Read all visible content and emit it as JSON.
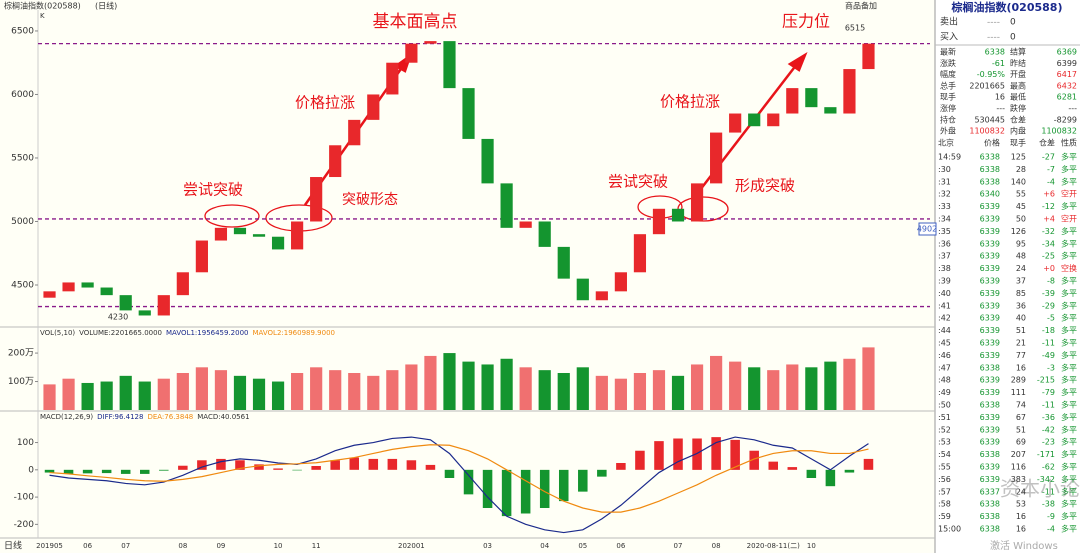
{
  "header": {
    "title": "棕榈油指数(020588)",
    "period": "(日线)",
    "corner": "K",
    "button": "商品备加"
  },
  "chart_data": [
    {
      "type": "candlestick",
      "ylim": [
        4185,
        6665
      ],
      "yticks": [
        4500,
        5000,
        5500,
        6000,
        6500
      ],
      "levels": [
        6400,
        5020,
        4330
      ],
      "open": [
        4400,
        4450,
        4520,
        4480,
        4420,
        4300,
        4260,
        4420,
        4600,
        4850,
        4950,
        4900,
        4880,
        4780,
        5000,
        5350,
        5600,
        5800,
        6000,
        6250,
        6400,
        6420,
        6050,
        5650,
        5300,
        4950,
        5000,
        4800,
        4550,
        4380,
        4450,
        4600,
        4900,
        5100,
        5000,
        5300,
        5700,
        5850,
        5750,
        5850,
        6050,
        5900,
        5850,
        6200
      ],
      "close": [
        4450,
        4520,
        4480,
        4420,
        4300,
        4260,
        4420,
        4600,
        4850,
        4950,
        4900,
        4880,
        4780,
        5000,
        5350,
        5600,
        5800,
        6000,
        6250,
        6400,
        6420,
        6050,
        5650,
        5300,
        4950,
        5000,
        4800,
        4550,
        4380,
        4450,
        4600,
        4900,
        5100,
        5000,
        5300,
        5700,
        5850,
        5750,
        5850,
        6050,
        5900,
        5850,
        6200,
        6400
      ],
      "up_color": "#e8282b",
      "down_color": "#14952f",
      "annotations": [
        "基本面高点",
        "价格拉涨",
        "尝试突破",
        "突破形态",
        "价格拉涨",
        "尝试突破",
        "形成突破",
        "压力位",
        "6515",
        "4230",
        "4902"
      ]
    },
    {
      "type": "bar",
      "legend": [
        "VOL(5,10)",
        "VOLUME:2201665.0000",
        "MAVOL1:1956459.2000",
        "MAVOL2:1960989.9000"
      ],
      "ylim": [
        0,
        2600000
      ],
      "yticks": [
        {
          "value": 1000000,
          "label": "100万"
        },
        {
          "value": 2000000,
          "label": "200万"
        }
      ],
      "values": [
        900000,
        1100000,
        950000,
        1000000,
        1200000,
        1000000,
        1100000,
        1300000,
        1500000,
        1400000,
        1200000,
        1100000,
        1000000,
        1300000,
        1500000,
        1400000,
        1300000,
        1200000,
        1400000,
        1600000,
        1900000,
        2000000,
        1700000,
        1600000,
        1800000,
        1500000,
        1400000,
        1300000,
        1500000,
        1200000,
        1100000,
        1300000,
        1400000,
        1200000,
        1600000,
        1900000,
        1700000,
        1500000,
        1400000,
        1600000,
        1500000,
        1700000,
        1800000,
        2200000
      ]
    },
    {
      "type": "macd",
      "legend": [
        "MACD(12,26,9)",
        "DIFF:96.4128",
        "DEA:76.3848",
        "MACD:40.0561"
      ],
      "ylim": [
        -250,
        190
      ],
      "yticks": [
        100,
        0,
        -100,
        -200
      ],
      "x_title": "日线",
      "categories": [
        "201905",
        null,
        "06",
        null,
        "07",
        null,
        null,
        "08",
        null,
        "09",
        null,
        null,
        "10",
        null,
        "11",
        null,
        null,
        null,
        null,
        "202001",
        null,
        null,
        null,
        "03",
        null,
        null,
        "04",
        null,
        "05",
        null,
        "06",
        null,
        null,
        "07",
        null,
        "08",
        null,
        null,
        "2020-08-11(二)",
        null,
        "10",
        null,
        null,
        null
      ],
      "series": [
        {
          "name": "DIFF",
          "color": "#1b2a8c",
          "values": [
            -20,
            -30,
            -35,
            -40,
            -50,
            -55,
            -45,
            -20,
            10,
            30,
            40,
            35,
            25,
            20,
            40,
            70,
            90,
            100,
            115,
            120,
            110,
            60,
            -20,
            -100,
            -170,
            -200,
            -220,
            -230,
            -220,
            -180,
            -130,
            -70,
            -10,
            30,
            60,
            100,
            120,
            110,
            90,
            80,
            40,
            0,
            50,
            96
          ]
        },
        {
          "name": "DEA",
          "color": "#f08a10",
          "values": [
            -10,
            -15,
            -22,
            -28,
            -35,
            -40,
            -42,
            -35,
            -25,
            -10,
            5,
            15,
            20,
            22,
            26,
            35,
            45,
            60,
            75,
            85,
            92,
            90,
            70,
            40,
            0,
            -40,
            -80,
            -115,
            -140,
            -155,
            -155,
            -140,
            -115,
            -85,
            -55,
            -20,
            10,
            40,
            60,
            70,
            70,
            60,
            60,
            76
          ]
        },
        {
          "name": "MACD",
          "color": "#e8282b",
          "values": [
            -10,
            -15,
            -13,
            -12,
            -15,
            -15,
            -3,
            15,
            35,
            40,
            35,
            20,
            5,
            -2,
            14,
            35,
            45,
            40,
            40,
            35,
            18,
            -30,
            -90,
            -140,
            -170,
            -160,
            -140,
            -115,
            -80,
            -25,
            25,
            70,
            105,
            115,
            115,
            120,
            110,
            70,
            30,
            10,
            -30,
            -60,
            -10,
            40
          ]
        }
      ]
    }
  ],
  "panel": {
    "title": "棕榈油指数(020588)",
    "orders": [
      [
        "卖出",
        "----",
        "0"
      ],
      [
        "买入",
        "----",
        "0"
      ]
    ],
    "quote": [
      [
        "最新",
        "6338",
        "结算",
        "6369"
      ],
      [
        "涨跌",
        "-61",
        "昨结",
        "6399"
      ],
      [
        "幅度",
        "-0.95%",
        "开盘",
        "6417"
      ],
      [
        "总手",
        "2201665",
        "最高",
        "6432"
      ],
      [
        "现手",
        "16",
        "最低",
        "6281"
      ],
      [
        "涨停",
        "---",
        "跌停",
        "---"
      ],
      [
        "持仓",
        "530445",
        "仓差",
        "-8299"
      ],
      [
        "外盘",
        "1100832",
        "内盘",
        "1100832"
      ]
    ],
    "tick_header": [
      "北京",
      "价格",
      "现手",
      "仓差",
      "性质"
    ],
    "ticks": [
      [
        "14:59",
        "6338",
        "125",
        "-27",
        "多平"
      ],
      [
        ":30",
        "6338",
        "28",
        "-7",
        "多平"
      ],
      [
        ":31",
        "6338",
        "140",
        "-4",
        "多平"
      ],
      [
        ":32",
        "6340",
        "55",
        "+6",
        "空开"
      ],
      [
        ":33",
        "6339",
        "45",
        "-12",
        "多平"
      ],
      [
        ":34",
        "6339",
        "50",
        "+4",
        "空开"
      ],
      [
        ":35",
        "6339",
        "126",
        "-32",
        "多平"
      ],
      [
        ":36",
        "6339",
        "95",
        "-34",
        "多平"
      ],
      [
        ":37",
        "6339",
        "48",
        "-25",
        "多平"
      ],
      [
        ":38",
        "6339",
        "24",
        "+0",
        "空换"
      ],
      [
        ":39",
        "6339",
        "37",
        "-8",
        "多平"
      ],
      [
        ":40",
        "6339",
        "85",
        "-39",
        "多平"
      ],
      [
        ":41",
        "6339",
        "36",
        "-29",
        "多平"
      ],
      [
        ":42",
        "6339",
        "40",
        "-5",
        "多平"
      ],
      [
        ":44",
        "6339",
        "51",
        "-18",
        "多平"
      ],
      [
        ":45",
        "6339",
        "21",
        "-11",
        "多平"
      ],
      [
        ":46",
        "6339",
        "77",
        "-49",
        "多平"
      ],
      [
        ":47",
        "6338",
        "16",
        "-3",
        "多平"
      ],
      [
        ":48",
        "6339",
        "289",
        "-215",
        "多平"
      ],
      [
        ":49",
        "6339",
        "111",
        "-79",
        "多平"
      ],
      [
        ":50",
        "6338",
        "74",
        "-11",
        "多平"
      ],
      [
        ":51",
        "6339",
        "67",
        "-36",
        "多平"
      ],
      [
        ":52",
        "6339",
        "51",
        "-42",
        "多平"
      ],
      [
        ":53",
        "6339",
        "69",
        "-23",
        "多平"
      ],
      [
        ":54",
        "6338",
        "207",
        "-171",
        "多平"
      ],
      [
        ":55",
        "6339",
        "116",
        "-62",
        "多平"
      ],
      [
        ":56",
        "6339",
        "383",
        "-342",
        "多平"
      ],
      [
        ":57",
        "6337",
        "24",
        "-11",
        "多平"
      ],
      [
        ":58",
        "6338",
        "53",
        "-38",
        "多平"
      ],
      [
        ":59",
        "6338",
        "16",
        "-9",
        "多平"
      ],
      [
        "15:00",
        "6338",
        "16",
        "-4",
        "多平"
      ]
    ]
  },
  "watermark": "资本小论",
  "windows": "激活 Windows"
}
